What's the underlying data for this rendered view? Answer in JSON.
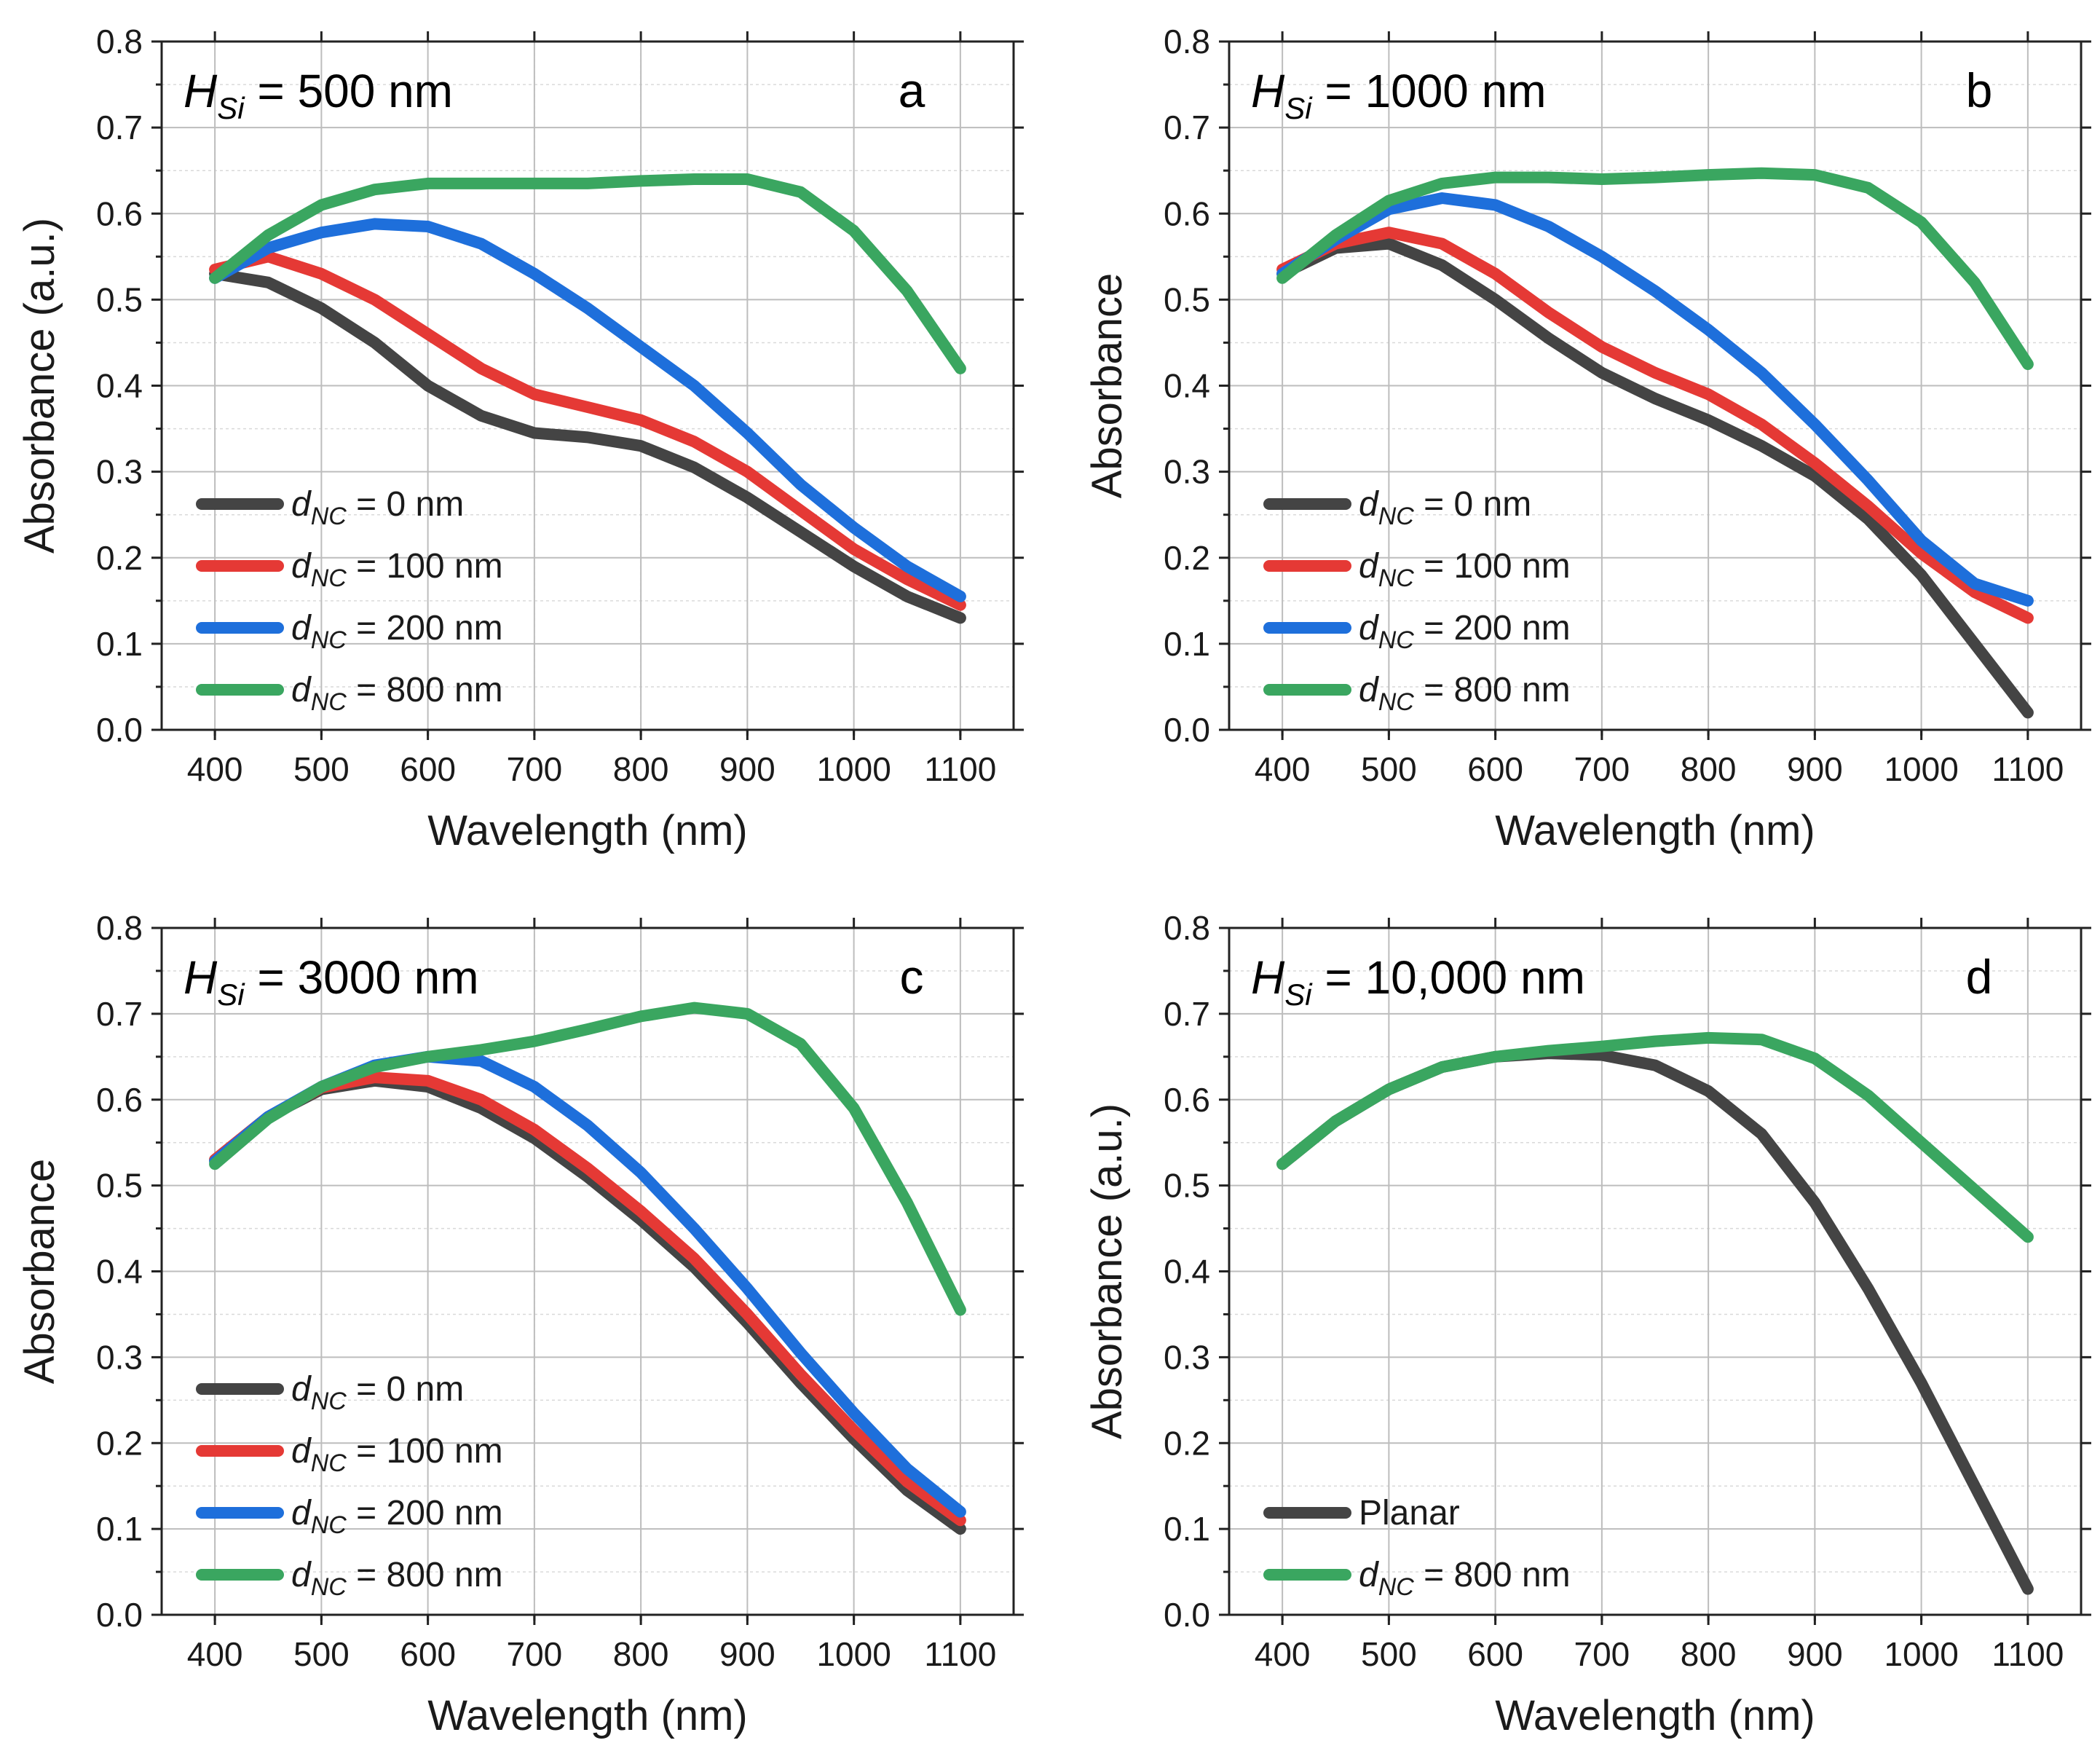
{
  "chart_data": [
    {
      "type": "line",
      "panel": "a",
      "title_var": "H",
      "title_sub": "Si",
      "title_value": "= 500 nm",
      "xlabel": "Wavelength (nm)",
      "ylabel": "Absorbance (a.u.)",
      "xlim": [
        350,
        1150
      ],
      "ylim": [
        0,
        0.8
      ],
      "xticks": [
        "400",
        "500",
        "600",
        "700",
        "800",
        "900",
        "1000",
        "1100"
      ],
      "yticks": [
        "0.0",
        "0.1",
        "0.2",
        "0.3",
        "0.4",
        "0.5",
        "0.6",
        "0.7",
        "0.8"
      ],
      "legend_position": "bottom-left",
      "x": [
        400,
        450,
        500,
        550,
        600,
        650,
        700,
        750,
        800,
        850,
        900,
        950,
        1000,
        1050,
        1100
      ],
      "series": [
        {
          "name": "0",
          "legend_var": "d",
          "legend_sub": "NC",
          "legend_value": "= 0 nm",
          "color": "#444444",
          "values": [
            0.53,
            0.52,
            0.49,
            0.45,
            0.4,
            0.365,
            0.345,
            0.34,
            0.33,
            0.305,
            0.27,
            0.23,
            0.19,
            0.155,
            0.13
          ]
        },
        {
          "name": "100",
          "legend_var": "d",
          "legend_sub": "NC",
          "legend_value": "= 100 nm",
          "color": "#e53935",
          "values": [
            0.535,
            0.55,
            0.53,
            0.5,
            0.46,
            0.42,
            0.39,
            0.375,
            0.36,
            0.335,
            0.3,
            0.255,
            0.21,
            0.175,
            0.145
          ]
        },
        {
          "name": "200",
          "legend_var": "d",
          "legend_sub": "NC",
          "legend_value": "= 200 nm",
          "color": "#1e6fdb",
          "values": [
            0.525,
            0.56,
            0.578,
            0.588,
            0.585,
            0.565,
            0.53,
            0.49,
            0.445,
            0.4,
            0.345,
            0.285,
            0.235,
            0.19,
            0.155
          ]
        },
        {
          "name": "800",
          "legend_var": "d",
          "legend_sub": "NC",
          "legend_value": "= 800 nm",
          "color": "#3aa660",
          "values": [
            0.525,
            0.575,
            0.61,
            0.628,
            0.635,
            0.635,
            0.635,
            0.635,
            0.638,
            0.64,
            0.64,
            0.625,
            0.58,
            0.51,
            0.42
          ]
        }
      ]
    },
    {
      "type": "line",
      "panel": "b",
      "title_var": "H",
      "title_sub": "Si",
      "title_value": "= 1000 nm",
      "xlabel": "Wavelength (nm)",
      "ylabel": "Absorbance",
      "xlim": [
        350,
        1150
      ],
      "ylim": [
        0,
        0.8
      ],
      "xticks": [
        "400",
        "500",
        "600",
        "700",
        "800",
        "900",
        "1000",
        "1100"
      ],
      "yticks": [
        "0.0",
        "0.1",
        "0.2",
        "0.3",
        "0.4",
        "0.5",
        "0.6",
        "0.7",
        "0.8"
      ],
      "legend_position": "bottom-left",
      "x": [
        400,
        450,
        500,
        550,
        600,
        650,
        700,
        750,
        800,
        850,
        900,
        950,
        1000,
        1050,
        1100
      ],
      "series": [
        {
          "name": "0",
          "legend_var": "d",
          "legend_sub": "NC",
          "legend_value": "= 0 nm",
          "color": "#444444",
          "values": [
            0.53,
            0.56,
            0.565,
            0.54,
            0.5,
            0.455,
            0.415,
            0.385,
            0.36,
            0.33,
            0.295,
            0.245,
            0.18,
            0.1,
            0.02
          ]
        },
        {
          "name": "100",
          "legend_var": "d",
          "legend_sub": "NC",
          "legend_value": "= 100 nm",
          "color": "#e53935",
          "values": [
            0.535,
            0.565,
            0.578,
            0.565,
            0.53,
            0.485,
            0.445,
            0.415,
            0.39,
            0.355,
            0.31,
            0.26,
            0.205,
            0.16,
            0.13
          ]
        },
        {
          "name": "200",
          "legend_var": "d",
          "legend_sub": "NC",
          "legend_value": "= 200 nm",
          "color": "#1e6fdb",
          "values": [
            0.53,
            0.57,
            0.605,
            0.618,
            0.61,
            0.585,
            0.55,
            0.51,
            0.465,
            0.415,
            0.355,
            0.29,
            0.22,
            0.17,
            0.15
          ]
        },
        {
          "name": "800",
          "legend_var": "d",
          "legend_sub": "NC",
          "legend_value": "= 800 nm",
          "color": "#3aa660",
          "values": [
            0.525,
            0.575,
            0.615,
            0.635,
            0.642,
            0.642,
            0.64,
            0.642,
            0.645,
            0.647,
            0.645,
            0.63,
            0.59,
            0.52,
            0.425
          ]
        }
      ]
    },
    {
      "type": "line",
      "panel": "c",
      "title_var": "H",
      "title_sub": "Si",
      "title_value": "= 3000 nm",
      "xlabel": "Wavelength (nm)",
      "ylabel": "Absorbance",
      "xlim": [
        350,
        1150
      ],
      "ylim": [
        0,
        0.8
      ],
      "xticks": [
        "400",
        "500",
        "600",
        "700",
        "800",
        "900",
        "1000",
        "1100"
      ],
      "yticks": [
        "0.0",
        "0.1",
        "0.2",
        "0.3",
        "0.4",
        "0.5",
        "0.6",
        "0.7",
        "0.8"
      ],
      "legend_position": "bottom-left",
      "x": [
        400,
        450,
        500,
        550,
        600,
        650,
        700,
        750,
        800,
        850,
        900,
        950,
        1000,
        1050,
        1100
      ],
      "series": [
        {
          "name": "0",
          "legend_var": "d",
          "legend_sub": "NC",
          "legend_value": "= 0 nm",
          "color": "#444444",
          "values": [
            0.53,
            0.58,
            0.612,
            0.622,
            0.615,
            0.59,
            0.555,
            0.51,
            0.46,
            0.405,
            0.34,
            0.27,
            0.205,
            0.145,
            0.1
          ]
        },
        {
          "name": "100",
          "legend_var": "d",
          "legend_sub": "NC",
          "legend_value": "= 100 nm",
          "color": "#e53935",
          "values": [
            0.53,
            0.58,
            0.614,
            0.626,
            0.622,
            0.6,
            0.565,
            0.52,
            0.47,
            0.415,
            0.35,
            0.28,
            0.215,
            0.155,
            0.11
          ]
        },
        {
          "name": "200",
          "legend_var": "d",
          "legend_sub": "NC",
          "legend_value": "= 200 nm",
          "color": "#1e6fdb",
          "values": [
            0.528,
            0.58,
            0.615,
            0.64,
            0.65,
            0.645,
            0.615,
            0.57,
            0.515,
            0.45,
            0.38,
            0.305,
            0.235,
            0.17,
            0.12
          ]
        },
        {
          "name": "800",
          "legend_var": "d",
          "legend_sub": "NC",
          "legend_value": "= 800 nm",
          "color": "#3aa660",
          "values": [
            0.525,
            0.578,
            0.615,
            0.638,
            0.65,
            0.658,
            0.668,
            0.682,
            0.697,
            0.707,
            0.7,
            0.665,
            0.59,
            0.48,
            0.355
          ]
        }
      ]
    },
    {
      "type": "line",
      "panel": "d",
      "title_var": "H",
      "title_sub": "Si",
      "title_value": "= 10,000 nm",
      "xlabel": "Wavelength (nm)",
      "ylabel": "Absorbance (a.u.)",
      "xlim": [
        350,
        1150
      ],
      "ylim": [
        0,
        0.8
      ],
      "xticks": [
        "400",
        "500",
        "600",
        "700",
        "800",
        "900",
        "1000",
        "1100"
      ],
      "yticks": [
        "0.0",
        "0.1",
        "0.2",
        "0.3",
        "0.4",
        "0.5",
        "0.6",
        "0.7",
        "0.8"
      ],
      "legend_position": "bottom-left",
      "x": [
        400,
        450,
        500,
        550,
        600,
        650,
        700,
        750,
        800,
        850,
        900,
        950,
        1000,
        1050,
        1100
      ],
      "series": [
        {
          "name": "Planar",
          "legend_text": "Planar",
          "color": "#444444",
          "values": [
            0.525,
            0.575,
            0.612,
            0.638,
            0.65,
            0.654,
            0.652,
            0.64,
            0.61,
            0.56,
            0.48,
            0.38,
            0.27,
            0.15,
            0.03
          ]
        },
        {
          "name": "800",
          "legend_var": "d",
          "legend_sub": "NC",
          "legend_value": "= 800 nm",
          "color": "#3aa660",
          "values": [
            0.525,
            0.575,
            0.612,
            0.638,
            0.65,
            0.657,
            0.662,
            0.668,
            0.672,
            0.67,
            0.648,
            0.605,
            0.55,
            0.495,
            0.44
          ]
        }
      ]
    }
  ]
}
